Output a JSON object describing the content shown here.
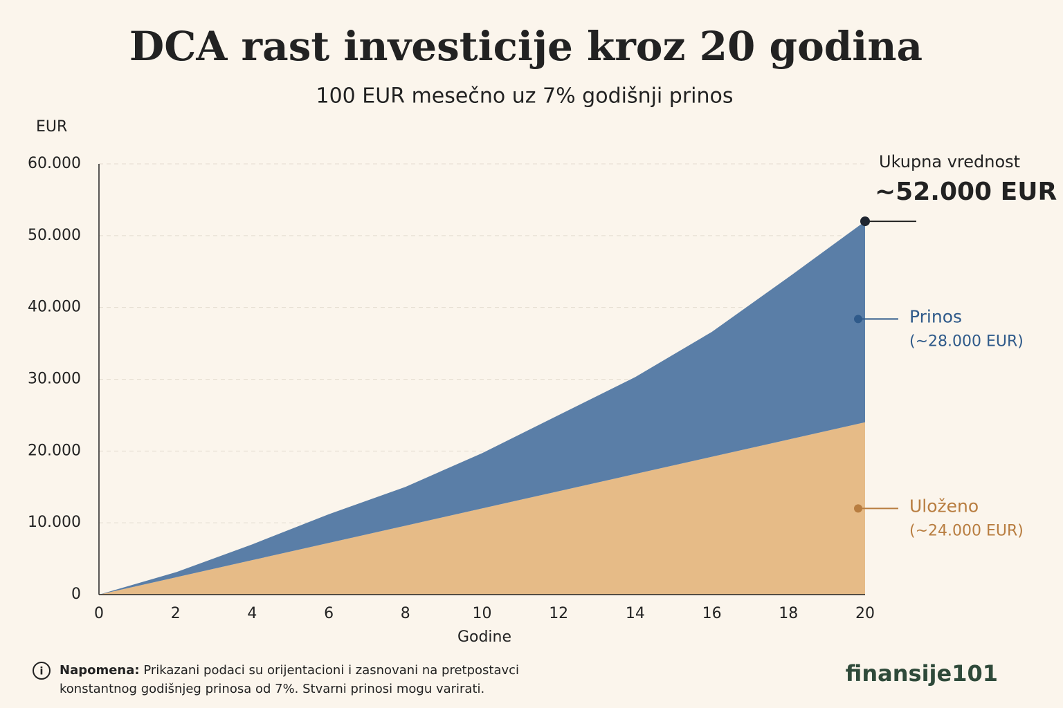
{
  "chart_data": {
    "type": "stacked-area",
    "title": "DCA rast investicije kroz 20 godina",
    "subtitle": "100 EUR mesečno uz 7% godišnji prinos",
    "y_label": "EUR",
    "x_label": "Godine",
    "x": [
      0,
      2,
      4,
      6,
      8,
      10,
      12,
      14,
      16,
      18,
      20
    ],
    "series": [
      {
        "name": "Uloženo",
        "color": "#e6bb87",
        "label_color": "#b87d40",
        "values": [
          0,
          2400,
          4800,
          7200,
          9600,
          12000,
          14400,
          16800,
          19200,
          21600,
          24000
        ],
        "annotation": "(~24.000 EUR)"
      },
      {
        "name": "Prinos",
        "color": "#5a7ea7",
        "label_color": "#2f5a8a",
        "values": [
          0,
          700,
          2200,
          4000,
          5400,
          7700,
          10600,
          13500,
          17400,
          22600,
          28000
        ],
        "annotation": "(~28.000 EUR)"
      }
    ],
    "xlim": [
      0,
      20
    ],
    "xticks": [
      0,
      2,
      4,
      6,
      8,
      10,
      12,
      14,
      16,
      18,
      20
    ],
    "ylim": [
      0,
      60000
    ],
    "yticks": [
      0,
      {
        "value": 10000,
        "label": "10.000"
      },
      {
        "value": 20000,
        "label": "20.000"
      },
      {
        "value": 30000,
        "label": "30.000"
      },
      {
        "value": 40000,
        "label": "40.000"
      },
      {
        "value": 50000,
        "label": "50.000"
      },
      {
        "value": 60000,
        "label": "60.000"
      }
    ],
    "grid": true,
    "total_annotation": {
      "title": "Ukupna vrednost",
      "value": "~52.000 EUR"
    }
  },
  "note": {
    "label": "Napomena:",
    "lines": [
      "Prikazani podaci su orijentacioni i zasnovani na pretpostavci",
      "konstantnog godišnjeg prinosa od 7%. Stvarni prinosi mogu varirati."
    ]
  },
  "brand": "finansije101"
}
